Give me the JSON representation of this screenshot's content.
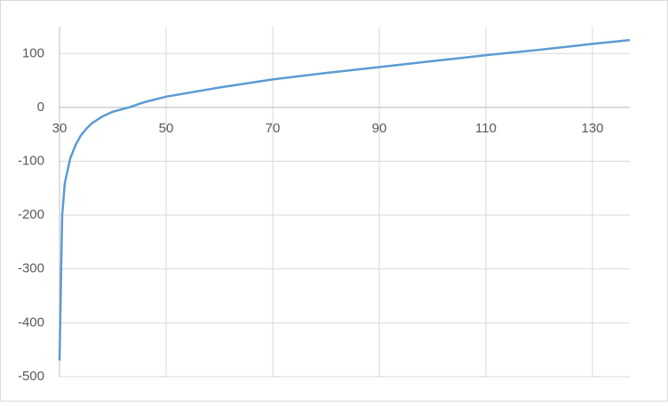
{
  "chart_data": {
    "type": "scatter",
    "x": [
      30,
      30.5,
      31,
      32,
      33,
      34,
      35,
      36,
      38,
      40,
      43,
      46,
      50,
      60,
      70,
      80,
      90,
      100,
      110,
      120,
      130,
      137
    ],
    "series": [
      {
        "color": "#5b9bd5",
        "values": [
          -470,
          -200,
          -140,
          -95,
          -70,
          -52,
          -40,
          -30,
          -17,
          -8,
          0,
          10,
          20,
          37,
          52,
          64,
          75,
          86,
          97,
          107,
          118,
          125
        ]
      }
    ],
    "xlim": [
      30,
      137
    ],
    "xticks": [
      30,
      50,
      70,
      90,
      110,
      130
    ],
    "ylim": [
      -500,
      150
    ],
    "yticks": [
      -500,
      -400,
      -300,
      -200,
      -100,
      0,
      100
    ],
    "grid": true
  }
}
